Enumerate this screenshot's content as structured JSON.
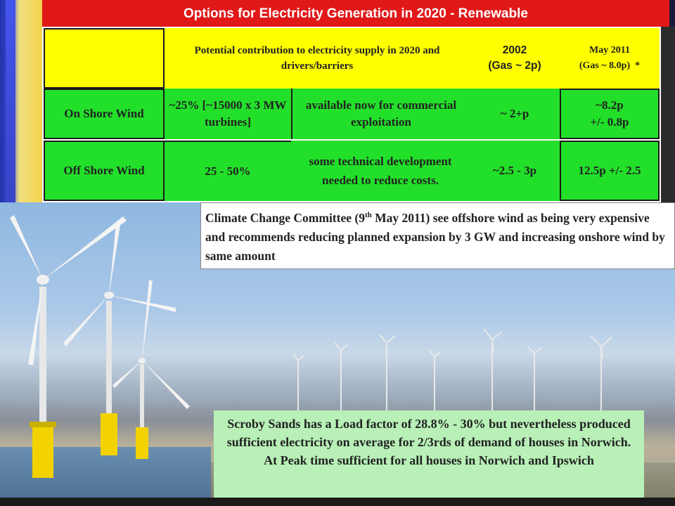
{
  "slide": {
    "title": "Options for Electricity Generation in 2020 - Renewable"
  },
  "table": {
    "header": {
      "contribution": "Potential contribution to electricity supply in 2020  and drivers/barriers",
      "year_2002": "2002",
      "gas_2002": "(Gas ~ 2p)",
      "may_2011": "May 2011",
      "gas_2011": "(Gas ~ 8.0p)",
      "asterisk": "*"
    },
    "rows": [
      {
        "name": "On Shore Wind",
        "contribution": "~25% [~15000 x 3 MW turbines]",
        "drivers": "available now for commercial exploitation",
        "cost_2002": "~ 2+p",
        "cost_2011_line1": "~8.2p",
        "cost_2011_line2": "+/- 0.8p"
      },
      {
        "name": "Off Shore Wind",
        "contribution": "25 - 50%",
        "drivers": "some technical development needed  to reduce costs.",
        "cost_2002": "~2.5 - 3p",
        "cost_2011_line1": "12.5p +/- 2.5",
        "cost_2011_line2": ""
      }
    ]
  },
  "notes": {
    "climate_pre": "Climate Change Committee (9",
    "climate_sup": "th",
    "climate_post": " May 2011) see offshore wind as being very expensive and recommends reducing planned expansion by 3 GW and increasing onshore wind by same amount",
    "scroby": "Scroby Sands has a Load factor of  28.8% - 30%  but nevertheless produced sufficient electricity on average for 2/3rds of demand of houses in Norwich.  At Peak time sufficient for all houses in Norwich and Ipswich"
  },
  "colors": {
    "title_bg": "#e01818",
    "header_bg": "#ffff00",
    "row_bg": "#22e02a"
  }
}
